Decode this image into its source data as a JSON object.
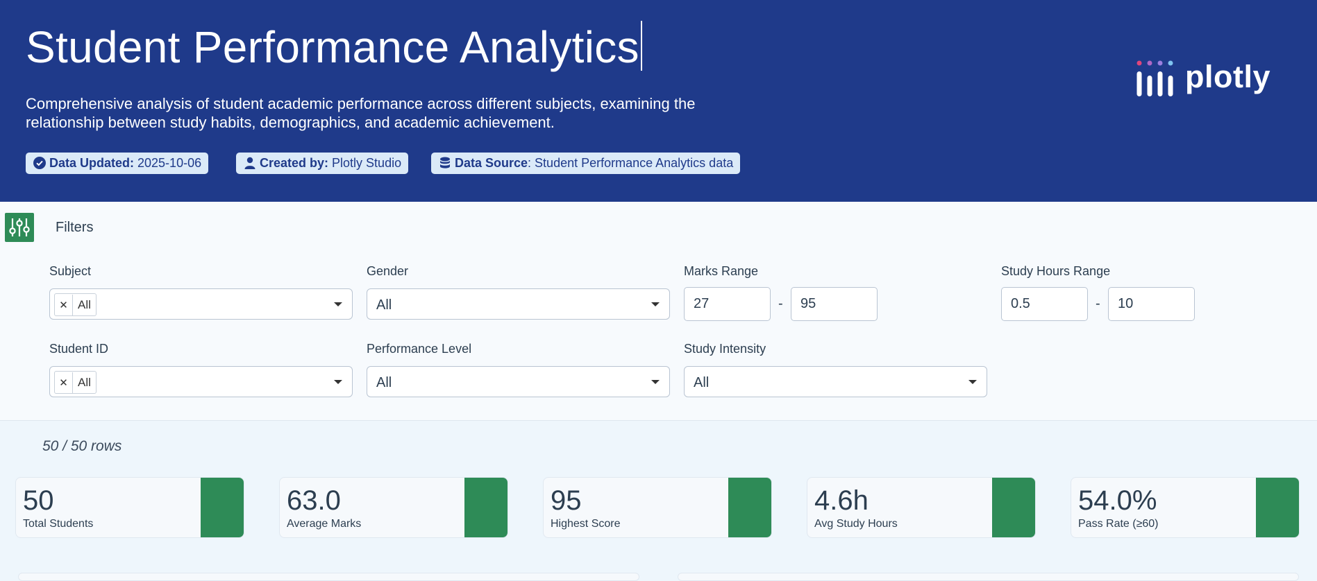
{
  "header": {
    "title": "Student Performance Analytics",
    "subtitle": "Comprehensive analysis of student academic performance across different subjects, examining the relationship between study habits, demographics, and academic achievement.",
    "badges": [
      {
        "icon": "check-circle-icon",
        "label": "Data Updated:",
        "value": " 2025-10-06"
      },
      {
        "icon": "user-icon",
        "label": "Created by:",
        "value": " Plotly Studio"
      },
      {
        "icon": "database-icon",
        "label": "Data Source",
        "value": ": Student Performance Analytics data"
      }
    ],
    "logo_text": "plotly"
  },
  "filters": {
    "title": "Filters",
    "subject": {
      "label": "Subject",
      "value": "All"
    },
    "gender": {
      "label": "Gender",
      "value": "All"
    },
    "marks_range": {
      "label": "Marks Range",
      "min": "27",
      "max": "95",
      "sep": "-"
    },
    "study_hours_range": {
      "label": "Study Hours Range",
      "min": "0.5",
      "max": "10",
      "sep": "-"
    },
    "student_id": {
      "label": "Student ID",
      "value": "All"
    },
    "performance_level": {
      "label": "Performance Level",
      "value": "All"
    },
    "study_intensity": {
      "label": "Study Intensity",
      "value": "All"
    }
  },
  "row_count": "50 / 50 rows",
  "kpis": [
    {
      "value": "50",
      "label": "Total Students"
    },
    {
      "value": "63.0",
      "label": "Average Marks"
    },
    {
      "value": "95",
      "label": "Highest Score"
    },
    {
      "value": "4.6h",
      "label": "Avg Study Hours"
    },
    {
      "value": "54.0%",
      "label": "Pass Rate (≥60)"
    }
  ],
  "colors": {
    "header_bg": "#1f3a8a",
    "accent_green": "#2e8b57",
    "badge_bg": "#dbeaf8"
  }
}
